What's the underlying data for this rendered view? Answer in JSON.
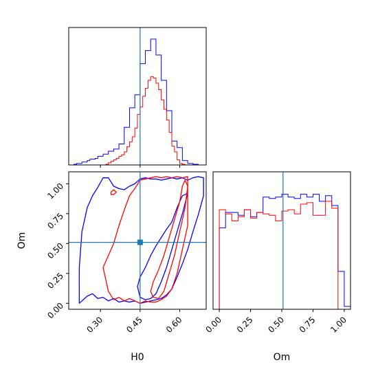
{
  "chart_data": [
    {
      "type": "histogram",
      "panel": "H0 marginal",
      "xlabel": "H0",
      "xlim": [
        0.18,
        0.7
      ],
      "truth": 0.45,
      "bins": [
        0.19,
        0.2,
        0.21,
        0.22,
        0.23,
        0.24,
        0.25,
        0.26,
        0.27,
        0.28,
        0.29,
        0.3,
        0.31,
        0.32,
        0.33,
        0.34,
        0.35,
        0.36,
        0.37,
        0.38,
        0.39,
        0.4,
        0.41,
        0.42,
        0.43,
        0.44,
        0.45,
        0.46,
        0.47,
        0.48,
        0.49,
        0.5,
        0.51,
        0.52,
        0.53,
        0.54,
        0.55,
        0.56,
        0.57,
        0.58,
        0.59,
        0.6,
        0.61,
        0.62,
        0.63,
        0.64,
        0.65,
        0.66,
        0.67,
        0.68,
        0.69,
        0.7
      ],
      "series": [
        {
          "color": "#0000ff",
          "values": [
            0.0,
            0.5,
            1.0,
            1.0,
            2.0,
            2.0,
            3.0,
            4.0,
            4.0,
            4.5,
            6.0,
            6.0,
            7.5,
            7.5,
            9.5,
            9.5,
            11.0,
            11.0,
            14.5,
            14.5,
            26.0,
            26.0,
            39.5,
            39.5,
            48.5,
            48.5,
            70.0,
            70.0,
            79.0,
            79.0,
            87.0,
            87.0,
            76.0,
            76.0,
            58.5,
            58.5,
            37.5,
            37.5,
            16.5,
            16.5,
            12.0,
            12.0,
            3.0,
            3.0,
            1.0,
            1.0,
            0.5,
            0.5,
            0.0,
            0.0,
            0.0
          ]
        },
        {
          "color": "#ff0000",
          "values": [
            0.0,
            0.0,
            0.0,
            0.0,
            0.0,
            0.0,
            0.0,
            0.0,
            0.0,
            0.0,
            0.0,
            0.0,
            0.0,
            0.5,
            1.5,
            2.5,
            3.5,
            4.5,
            6.0,
            7.0,
            9.0,
            12.5,
            16.0,
            19.5,
            25.5,
            35.0,
            40.0,
            47.5,
            53.0,
            58.5,
            61.0,
            60.0,
            56.5,
            52.0,
            45.0,
            38.5,
            31.0,
            22.5,
            13.0,
            9.0,
            3.5,
            1.0,
            0.5,
            0.0,
            0.0,
            0.0,
            0.0,
            0.0,
            0.0,
            0.0,
            0.0
          ]
        }
      ]
    },
    {
      "type": "histogram",
      "panel": "Om marginal",
      "xlabel": "Om",
      "xlim": [
        -0.05,
        1.05
      ],
      "truth": 0.51,
      "xticks": [
        "0.00",
        "0.25",
        "0.50",
        "0.75",
        "1.00"
      ],
      "bins": [
        -0.05,
        0.0,
        0.05,
        0.1,
        0.15,
        0.2,
        0.25,
        0.3,
        0.35,
        0.4,
        0.45,
        0.5,
        0.55,
        0.6,
        0.65,
        0.7,
        0.75,
        0.8,
        0.85,
        0.9,
        0.95,
        1.0,
        1.05
      ],
      "series": [
        {
          "color": "#0000ff",
          "values": [
            0.0,
            0.58,
            0.69,
            0.69,
            0.67,
            0.71,
            0.66,
            0.69,
            0.8,
            0.79,
            0.8,
            0.82,
            0.8,
            0.79,
            0.82,
            0.8,
            0.82,
            0.77,
            0.81,
            0.74,
            0.27,
            0.02
          ]
        },
        {
          "color": "#ff0000",
          "values": [
            0.0,
            0.71,
            0.68,
            0.63,
            0.66,
            0.71,
            0.65,
            0.69,
            0.68,
            0.67,
            0.63,
            0.7,
            0.71,
            0.68,
            0.75,
            0.76,
            0.67,
            0.67,
            0.77,
            0.72,
            0.0,
            0.0
          ]
        }
      ]
    },
    {
      "type": "contour",
      "panel": "H0 vs Om",
      "xlabel": "H0",
      "ylabel": "Om",
      "xlim": [
        0.18,
        0.7
      ],
      "ylim": [
        -0.05,
        1.1
      ],
      "xticks": [
        "0.30",
        "0.45",
        "0.60"
      ],
      "yticks": [
        "0.00",
        "0.25",
        "0.50",
        "0.75",
        "1.00"
      ],
      "truth": [
        0.45,
        0.51
      ],
      "series": [
        {
          "color": "#0000ff",
          "level": "outer",
          "x": [
            0.22,
            0.25,
            0.27,
            0.29,
            0.31,
            0.33,
            0.35,
            0.37,
            0.39,
            0.41,
            0.43,
            0.45,
            0.47,
            0.49,
            0.51,
            0.53,
            0.55,
            0.57,
            0.59,
            0.61,
            0.63,
            0.65,
            0.67,
            0.69,
            0.69,
            0.67,
            0.65,
            0.63,
            0.61,
            0.59,
            0.57,
            0.55,
            0.53,
            0.51,
            0.49,
            0.47,
            0.45,
            0.43,
            0.41,
            0.39,
            0.37,
            0.35,
            0.33,
            0.31,
            0.29,
            0.27,
            0.25,
            0.23,
            0.22
          ],
          "y": [
            0.0,
            0.06,
            0.08,
            0.04,
            0.05,
            0.02,
            0.04,
            0.01,
            0.02,
            0.01,
            0.02,
            0.0,
            0.01,
            0.02,
            0.03,
            0.04,
            0.07,
            0.12,
            0.22,
            0.33,
            0.45,
            0.6,
            0.74,
            0.9,
            1.05,
            1.06,
            1.05,
            1.03,
            1.05,
            1.04,
            1.05,
            1.04,
            1.03,
            1.04,
            1.04,
            1.05,
            1.04,
            1.0,
            0.98,
            0.95,
            0.96,
            0.98,
            1.05,
            1.05,
            0.97,
            0.9,
            0.8,
            0.6,
            0.3
          ]
        },
        {
          "color": "#0000ff",
          "level": "inner",
          "x": [
            0.45,
            0.47,
            0.49,
            0.51,
            0.53,
            0.55,
            0.57,
            0.59,
            0.61,
            0.63,
            0.61,
            0.59,
            0.57,
            0.55,
            0.53,
            0.51,
            0.49,
            0.47,
            0.45,
            0.44,
            0.45
          ],
          "y": [
            0.05,
            0.03,
            0.04,
            0.08,
            0.18,
            0.3,
            0.45,
            0.6,
            0.75,
            0.92,
            0.9,
            0.8,
            0.68,
            0.62,
            0.55,
            0.48,
            0.4,
            0.3,
            0.22,
            0.14,
            0.05
          ]
        },
        {
          "color": "#ff0000",
          "level": "outer",
          "x": [
            0.43,
            0.45,
            0.47,
            0.49,
            0.51,
            0.53,
            0.55,
            0.57,
            0.59,
            0.61,
            0.63,
            0.63,
            0.61,
            0.59,
            0.57,
            0.55,
            0.53,
            0.51,
            0.49,
            0.47,
            0.45,
            0.43,
            0.41,
            0.39,
            0.37,
            0.35,
            0.33,
            0.31,
            0.32,
            0.33,
            0.35,
            0.37,
            0.39,
            0.41,
            0.43
          ],
          "y": [
            0.02,
            0.0,
            0.02,
            0.01,
            0.01,
            0.03,
            0.06,
            0.12,
            0.25,
            0.45,
            0.65,
            1.06,
            1.05,
            1.06,
            1.05,
            1.06,
            1.05,
            1.06,
            1.05,
            1.04,
            1.03,
            0.96,
            0.9,
            0.78,
            0.65,
            0.5,
            0.4,
            0.3,
            0.2,
            0.1,
            0.03,
            0.05,
            0.02,
            0.04,
            0.02
          ]
        },
        {
          "color": "#ff0000",
          "level": "inner",
          "x": [
            0.5,
            0.52,
            0.54,
            0.56,
            0.58,
            0.6,
            0.62,
            0.63,
            0.62,
            0.61,
            0.6,
            0.58,
            0.56,
            0.54,
            0.52,
            0.5,
            0.49,
            0.5
          ],
          "y": [
            0.05,
            0.04,
            0.1,
            0.25,
            0.4,
            0.6,
            0.8,
            0.98,
            1.03,
            0.98,
            0.85,
            0.7,
            0.55,
            0.4,
            0.28,
            0.18,
            0.1,
            0.05
          ]
        },
        {
          "color": "#ff0000",
          "level": "island",
          "x": [
            0.34,
            0.35,
            0.36,
            0.35,
            0.34,
            0.34
          ],
          "y": [
            0.93,
            0.95,
            0.93,
            0.91,
            0.91,
            0.93
          ]
        }
      ]
    }
  ]
}
